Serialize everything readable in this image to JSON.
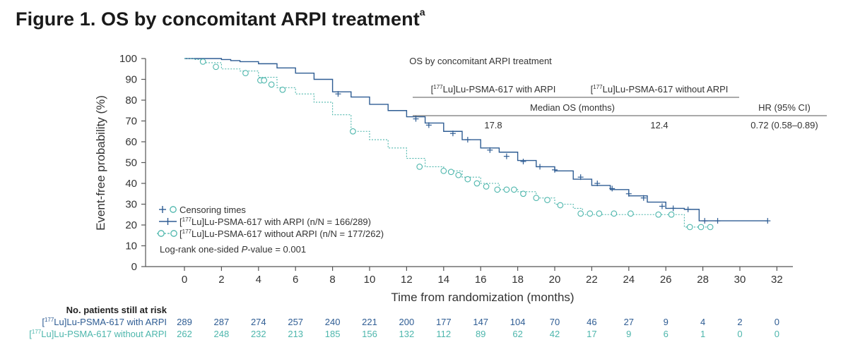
{
  "figure": {
    "title": "Figure 1. OS by concomitant ARPI treatment",
    "title_sup": "a"
  },
  "colors": {
    "with_arpi": "#2e5c93",
    "without_arpi": "#4db6ac",
    "axis": "#555555",
    "text": "#333333"
  },
  "table": {
    "title": "OS by concomitant ARPI treatment",
    "col_with_pre": "[",
    "col_with_sup": "177",
    "col_with_post": "Lu]Lu-PSMA-617 with ARPI",
    "col_without_pre": "[",
    "col_without_sup": "177",
    "col_without_post": "Lu]Lu-PSMA-617 without ARPI",
    "median_header": "Median OS (months)",
    "hr_header": "HR (95% CI)",
    "median_with": "17.8",
    "median_without": "12.4",
    "hr_value": "0.72 (0.58–0.89)"
  },
  "legend": {
    "censor_label": "Censoring times",
    "with_pre": "[",
    "with_sup": "177",
    "with_post": "Lu]Lu-PSMA-617 with ARPI (n/N = 166/289)",
    "without_pre": "[",
    "without_sup": "177",
    "without_post": "Lu]Lu-PSMA-617 without ARPI (n/N = 177/262)",
    "logrank_pre": "Log-rank one-sided ",
    "logrank_p": "P",
    "logrank_post": "-value = 0.001"
  },
  "risk": {
    "title": "No. patients still at risk",
    "row_with_pre": "[",
    "row_with_sup": "177",
    "row_with_post": "Lu]Lu-PSMA-617 with ARPI",
    "row_without_pre": "[",
    "row_without_sup": "177",
    "row_without_post": "Lu]Lu-PSMA-617 without ARPI",
    "with_values": [
      "289",
      "287",
      "274",
      "257",
      "240",
      "221",
      "200",
      "177",
      "147",
      "104",
      "70",
      "46",
      "27",
      "9",
      "4",
      "2",
      "0"
    ],
    "without_values": [
      "262",
      "248",
      "232",
      "213",
      "185",
      "156",
      "132",
      "112",
      "89",
      "62",
      "42",
      "17",
      "9",
      "6",
      "1",
      "0",
      "0"
    ]
  },
  "chart_data": {
    "type": "line",
    "subtype": "kaplan-meier step curves",
    "xlabel": "Time from randomization (months)",
    "ylabel": "Event-free probability (%)",
    "xlim": [
      0,
      32
    ],
    "ylim": [
      0,
      100
    ],
    "x_ticks": [
      0,
      2,
      4,
      6,
      8,
      10,
      12,
      14,
      16,
      18,
      20,
      22,
      24,
      26,
      28,
      30,
      32
    ],
    "y_ticks": [
      0,
      10,
      20,
      30,
      40,
      50,
      60,
      70,
      80,
      90,
      100
    ],
    "grid": false,
    "legend_position": "bottom-left",
    "series": [
      {
        "name": "[177Lu]Lu-PSMA-617 with ARPI",
        "color": "#2e5c93",
        "style": "solid",
        "censor_marker": "plus",
        "points": [
          [
            0,
            100
          ],
          [
            2,
            99.5
          ],
          [
            2.5,
            99
          ],
          [
            3,
            98.5
          ],
          [
            4,
            97.5
          ],
          [
            5,
            95.5
          ],
          [
            6,
            93
          ],
          [
            7,
            90
          ],
          [
            8,
            84
          ],
          [
            9,
            81.5
          ],
          [
            10,
            78
          ],
          [
            11,
            75
          ],
          [
            12,
            72
          ],
          [
            13,
            69
          ],
          [
            14,
            65
          ],
          [
            15,
            61
          ],
          [
            16,
            57
          ],
          [
            17,
            55
          ],
          [
            18,
            51
          ],
          [
            19,
            48
          ],
          [
            20,
            46
          ],
          [
            21,
            42
          ],
          [
            22,
            39
          ],
          [
            23,
            37
          ],
          [
            24,
            34
          ],
          [
            25,
            31
          ],
          [
            26,
            28
          ],
          [
            27,
            27.5
          ],
          [
            27.8,
            22
          ],
          [
            31.5,
            22
          ]
        ],
        "censored": [
          [
            8.3,
            83
          ],
          [
            12.5,
            71
          ],
          [
            13.2,
            68
          ],
          [
            14.5,
            64
          ],
          [
            15.3,
            61
          ],
          [
            16.5,
            56
          ],
          [
            17.4,
            53
          ],
          [
            18.3,
            50.5
          ],
          [
            19.2,
            48
          ],
          [
            20,
            46.5
          ],
          [
            21.4,
            43
          ],
          [
            22.3,
            40
          ],
          [
            23.1,
            37.5
          ],
          [
            24,
            35
          ],
          [
            24.8,
            33
          ],
          [
            25.8,
            29
          ],
          [
            26.4,
            28
          ],
          [
            27.2,
            27.5
          ],
          [
            28.1,
            22
          ],
          [
            28.8,
            22
          ],
          [
            31.5,
            22
          ]
        ]
      },
      {
        "name": "[177Lu]Lu-PSMA-617 without ARPI",
        "color": "#4db6ac",
        "style": "dashed",
        "censor_marker": "circle",
        "points": [
          [
            0,
            100
          ],
          [
            0.5,
            99.5
          ],
          [
            1,
            98
          ],
          [
            2,
            95
          ],
          [
            3,
            94
          ],
          [
            4,
            91
          ],
          [
            5,
            86
          ],
          [
            6,
            83
          ],
          [
            7,
            79
          ],
          [
            8,
            73
          ],
          [
            9,
            65
          ],
          [
            10,
            61
          ],
          [
            11,
            57
          ],
          [
            12,
            52
          ],
          [
            13,
            48
          ],
          [
            14,
            46
          ],
          [
            15,
            43
          ],
          [
            16,
            40
          ],
          [
            17,
            37
          ],
          [
            18,
            36
          ],
          [
            19,
            33
          ],
          [
            20,
            30
          ],
          [
            21,
            28
          ],
          [
            21.5,
            25
          ],
          [
            23,
            25
          ],
          [
            25,
            25
          ],
          [
            26,
            25
          ],
          [
            26.8,
            25
          ],
          [
            27,
            19
          ],
          [
            28.5,
            19
          ]
        ],
        "censored": [
          [
            1,
            98.5
          ],
          [
            1.7,
            96
          ],
          [
            3.3,
            93
          ],
          [
            4.1,
            89.5
          ],
          [
            4.3,
            89.5
          ],
          [
            4.7,
            87.5
          ],
          [
            5.3,
            85
          ],
          [
            9.1,
            65
          ],
          [
            12.7,
            48
          ],
          [
            14,
            46
          ],
          [
            14.4,
            45.5
          ],
          [
            14.8,
            44
          ],
          [
            15.3,
            42
          ],
          [
            15.8,
            40
          ],
          [
            16.3,
            38.5
          ],
          [
            16.9,
            37
          ],
          [
            17.4,
            37
          ],
          [
            17.8,
            37
          ],
          [
            18.3,
            35
          ],
          [
            19,
            33
          ],
          [
            19.6,
            32
          ],
          [
            20.3,
            29.5
          ],
          [
            21.4,
            25.5
          ],
          [
            21.9,
            25.5
          ],
          [
            22.4,
            25.5
          ],
          [
            23.2,
            25.5
          ],
          [
            24.1,
            25.5
          ],
          [
            25.6,
            25
          ],
          [
            26.3,
            25
          ],
          [
            27.3,
            19
          ],
          [
            27.9,
            19
          ],
          [
            28.4,
            19
          ]
        ]
      }
    ]
  }
}
